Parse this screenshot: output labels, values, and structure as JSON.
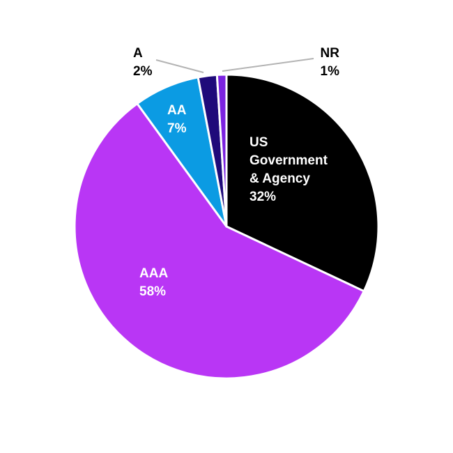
{
  "chart_data": {
    "type": "pie",
    "title": "",
    "slices": [
      {
        "label": "US Government & Agency",
        "label_lines": [
          "US",
          "Government",
          "& Agency"
        ],
        "value": 32,
        "value_label": "32%",
        "color": "#000000",
        "text_color": "#ffffff"
      },
      {
        "label": "AAA",
        "label_lines": [
          "AAA"
        ],
        "value": 58,
        "value_label": "58%",
        "color": "#b936f5",
        "text_color": "#ffffff"
      },
      {
        "label": "AA",
        "label_lines": [
          "AA"
        ],
        "value": 7,
        "value_label": "7%",
        "color": "#0b9be3",
        "text_color": "#ffffff"
      },
      {
        "label": "A",
        "label_lines": [
          "A"
        ],
        "value": 2,
        "value_label": "2%",
        "color": "#1f0a7a",
        "text_color": "#000000"
      },
      {
        "label": "NR",
        "label_lines": [
          "NR"
        ],
        "value": 1,
        "value_label": "1%",
        "color": "#7b22e0",
        "text_color": "#000000"
      }
    ],
    "start_angle_deg": 0,
    "direction": "clockwise",
    "legend": "none"
  }
}
